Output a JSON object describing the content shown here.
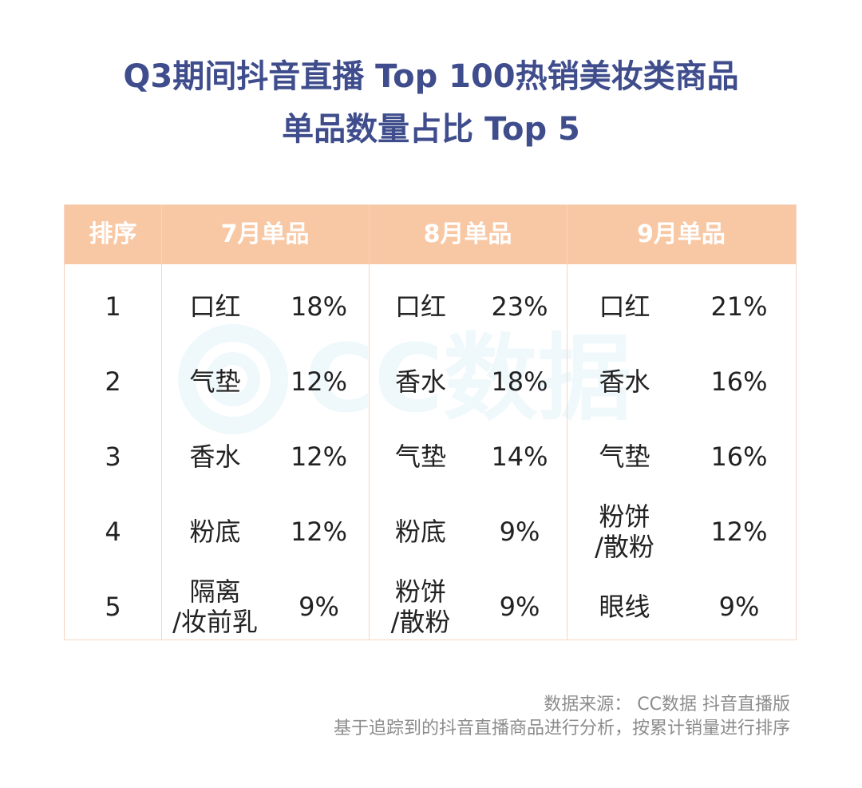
{
  "title": {
    "line1": "Q3期间抖音直播 Top 100热销美妆类商品",
    "line2": "单品数量占比 Top 5"
  },
  "table": {
    "headers": [
      "排序",
      "7月单品",
      "8月单品",
      "9月单品"
    ],
    "rows": [
      {
        "rank": "1",
        "jul_item": "口红",
        "jul_pct": "18%",
        "aug_item": "口红",
        "aug_pct": "23%",
        "sep_item": "口红",
        "sep_pct": "21%"
      },
      {
        "rank": "2",
        "jul_item": "气垫",
        "jul_pct": "12%",
        "aug_item": "香水",
        "aug_pct": "18%",
        "sep_item": "香水",
        "sep_pct": "16%"
      },
      {
        "rank": "3",
        "jul_item": "香水",
        "jul_pct": "12%",
        "aug_item": "气垫",
        "aug_pct": "14%",
        "sep_item": "气垫",
        "sep_pct": "16%"
      },
      {
        "rank": "4",
        "jul_item": "粉底",
        "jul_pct": "12%",
        "aug_item": "粉底",
        "aug_pct": "9%",
        "sep_item": "粉饼\n/散粉",
        "sep_pct": "12%"
      },
      {
        "rank": "5",
        "jul_item": "隔离\n/妆前乳",
        "jul_pct": "9%",
        "aug_item": "粉饼\n/散粉",
        "aug_pct": "9%",
        "sep_item": "眼线",
        "sep_pct": "9%"
      }
    ]
  },
  "watermark": {
    "text": "CC数据"
  },
  "footer": {
    "source": "数据来源： CC数据 抖音直播版",
    "note": "基于追踪到的抖音直播商品进行分析，按累计销量进行排序"
  },
  "colors": {
    "title": "#3f4d8d",
    "header_bg": "#f8c8a4",
    "border": "#f4d6c3"
  }
}
